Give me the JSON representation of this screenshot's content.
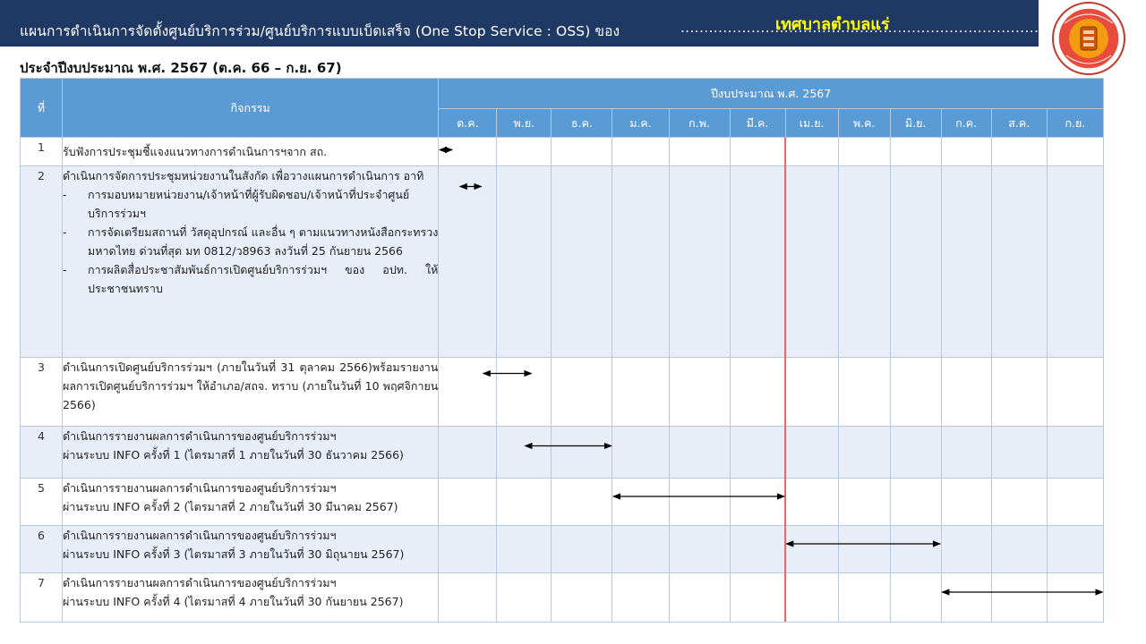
{
  "header": {
    "title": "แผนการดำเนินการจัดตั้งศูนย์บริการร่วม/ศูนย์บริการแบบเบ็ดเสร็จ (One Stop Service : OSS)  ของ",
    "dots": "....................................................................................................",
    "org_name": "เทศบาลตำบลแร่",
    "logo_icon": "municipality-seal"
  },
  "subtitle": "ประจำปีงบประมาณ พ.ศ. 2567 (ต.ค. 66 – ก.ย. 67)",
  "table": {
    "col_no": "ที่",
    "col_activity": "กิจกรรม",
    "fiscal_year": "ปีงบประมาณ  พ.ศ. 2567",
    "months": [
      "ต.ค.",
      "พ.ย.",
      "ธ.ค.",
      "ม.ค.",
      "ก.พ.",
      "มี.ค.",
      "เม.ย.",
      "พ.ค.",
      "มิ.ย.",
      "ก.ค.",
      "ส.ค.",
      "ก.ย."
    ],
    "rows": [
      {
        "no": "1",
        "activity": "รับฟังการประชุมชี้แจงแนวทางการดำเนินการฯจาก สถ."
      },
      {
        "no": "2",
        "activity": "ดำเนินการจัดการประชุมหน่วยงานในสังกัด เพื่อวางแผนการดำเนินการ อาทิ",
        "subitems": [
          "การมอบหมายหน่วยงาน/เจ้าหน้าที่ผู้รับผิดชอบ/เจ้าหน้าที่ประจำศูนย์บริการร่วมฯ",
          "การจัดเตรียมสถานที่ วัสดุอุปกรณ์ และอื่น ๆ ตามแนวทางหนังสือกระทรวงมหาดไทย ด่วนที่สุด มท 0812/ว8963 ลงวันที่ 25 กันยายน 2566",
          "การผลิตสื่อประชาสัมพันธ์การเปิดศูนย์บริการร่วมฯ ของ อปท. ให้ประชาชนทราบ"
        ]
      },
      {
        "no": "3",
        "activity": "ดำเนินการเปิดศูนย์บริการร่วมฯ (ภายในวันที่ 31 ตุลาคม 2566)พร้อมรายงานผลการเปิดศูนย์บริการร่วมฯ ให้อำเภอ/สถจ. ทราบ (ภายในวันที่ 10 พฤศจิกายน 2566)"
      },
      {
        "no": "4",
        "activity": "ดำเนินการรายงานผลการดำเนินการของศูนย์บริการร่วมฯ",
        "activity2": "ผ่านระบบ INFO ครั้งที่ 1 (ไตรมาสที่ 1 ภายในวันที่ 30 ธันวาคม 2566)"
      },
      {
        "no": "5",
        "activity": "ดำเนินการรายงานผลการดำเนินการของศูนย์บริการร่วมฯ",
        "activity2": "ผ่านระบบ INFO ครั้งที่ 2 (ไตรมาสที่ 2 ภายในวันที่ 30 มีนาคม 2567)"
      },
      {
        "no": "6",
        "activity": "ดำเนินการรายงานผลการดำเนินการของศูนย์บริการร่วมฯ",
        "activity2": "ผ่านระบบ INFO ครั้งที่ 3 (ไตรมาสที่ 3 ภายในวันที่ 30 มิถุนายน 2567)"
      },
      {
        "no": "7",
        "activity": "ดำเนินการรายงานผลการดำเนินการของศูนย์บริการร่วมฯ",
        "activity2": "ผ่านระบบ INFO ครั้งที่ 4 (ไตรมาสที่ 4 ภายในวันที่ 30 กันยายน 2567)"
      }
    ]
  },
  "schedule_bars": [
    {
      "row": 1,
      "start_month": 0.0,
      "end_month": 0.25
    },
    {
      "row": 2,
      "start_month": 0.35,
      "end_month": 0.75
    },
    {
      "row": 3,
      "start_month": 0.75,
      "end_month": 1.65
    },
    {
      "row": 4,
      "start_month": 1.5,
      "end_month": 3.0
    },
    {
      "row": 5,
      "start_month": 3.0,
      "end_month": 6.0
    },
    {
      "row": 6,
      "start_month": 6.0,
      "end_month": 9.0
    },
    {
      "row": 7,
      "start_month": 9.0,
      "end_month": 12.0
    }
  ],
  "current_marker_month": 6.0,
  "colors": {
    "header_bar": "#1f3864",
    "table_header": "#5b9bd5",
    "row_shade": "#e8eef8",
    "org_name": "#ffff00",
    "marker": "#e06666"
  }
}
